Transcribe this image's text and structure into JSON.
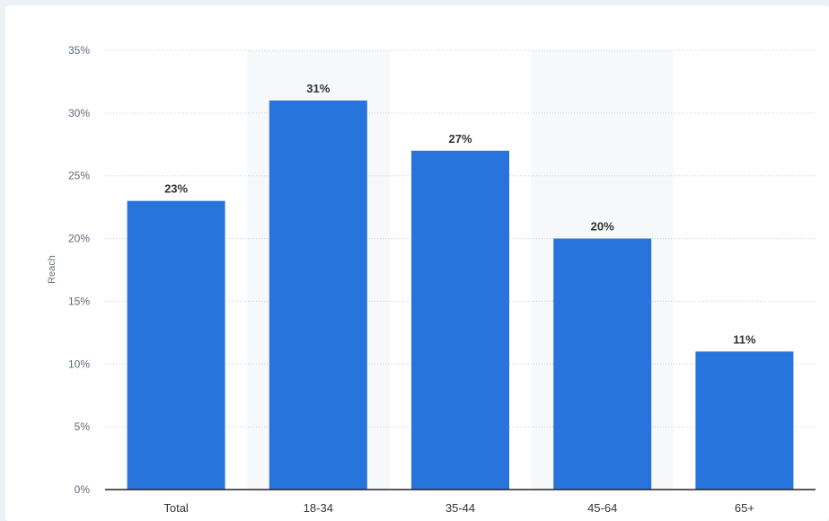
{
  "chart_data": {
    "type": "bar",
    "ylabel": "Reach",
    "categories": [
      "Total",
      "18-34",
      "35-44",
      "45-64",
      "65+"
    ],
    "values": [
      23,
      31,
      27,
      20,
      11
    ],
    "value_labels": [
      "23%",
      "31%",
      "27%",
      "20%",
      "11%"
    ],
    "yticks": [
      {
        "value": 0,
        "label": "0%"
      },
      {
        "value": 5,
        "label": "5%"
      },
      {
        "value": 10,
        "label": "10%"
      },
      {
        "value": 15,
        "label": "15%"
      },
      {
        "value": 20,
        "label": "20%"
      },
      {
        "value": 25,
        "label": "25%"
      },
      {
        "value": 30,
        "label": "30%"
      },
      {
        "value": 35,
        "label": "35%"
      }
    ],
    "ylim": [
      0,
      35
    ],
    "grid": true,
    "legend": "none",
    "colors": {
      "bar": "#2874dd",
      "alt_band": "#f7f8f9",
      "grid": "#c8ccd2",
      "axis": "#222222"
    }
  }
}
